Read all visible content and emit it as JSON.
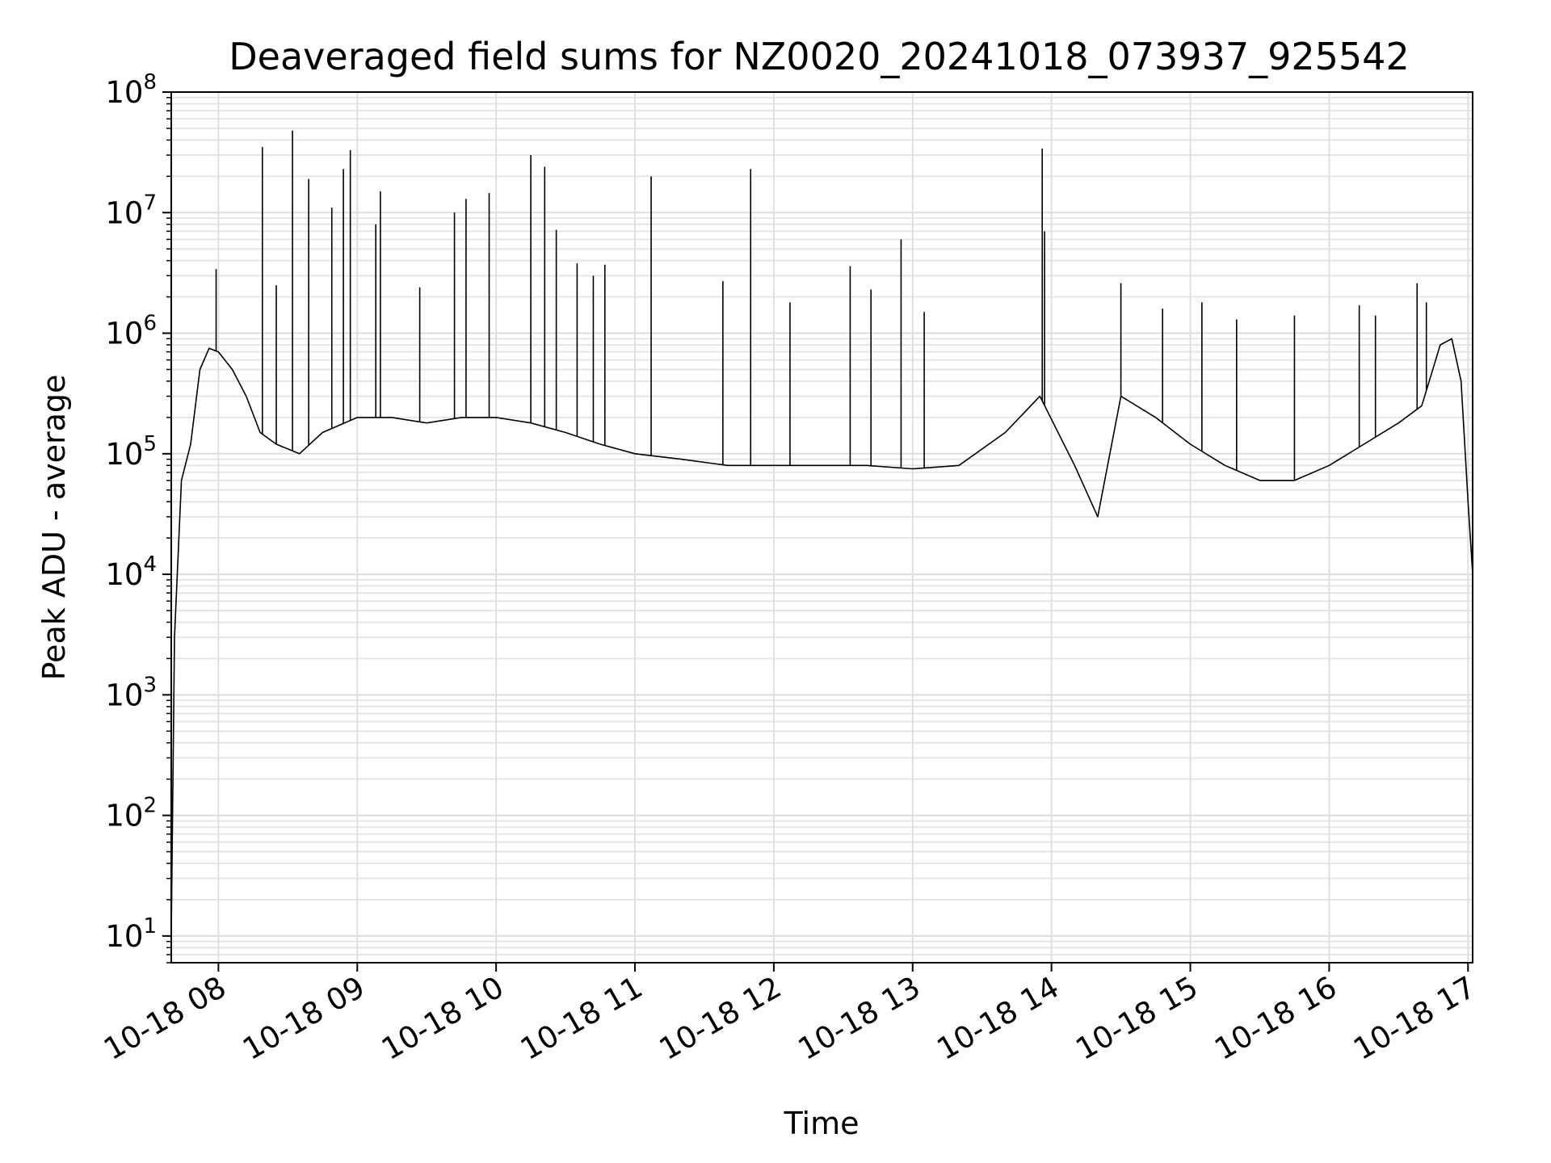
{
  "chart_data": {
    "type": "line",
    "title": "Deaveraged field sums for NZ0020_20241018_073937_925542",
    "xlabel": "Time",
    "ylabel": "Peak ADU - average",
    "yscale": "log",
    "ylim": [
      6,
      100000000
    ],
    "xlim": [
      "2024-10-18T07:39:37",
      "2024-10-18T17:02:00"
    ],
    "grid": true,
    "series_color": "#000000",
    "x_ticks": [
      "10-18 08",
      "10-18 09",
      "10-18 10",
      "10-18 11",
      "10-18 12",
      "10-18 13",
      "10-18 14",
      "10-18 15",
      "10-18 16",
      "10-18 17"
    ],
    "y_ticks": [
      {
        "base": "10",
        "exp": "1"
      },
      {
        "base": "10",
        "exp": "2"
      },
      {
        "base": "10",
        "exp": "3"
      },
      {
        "base": "10",
        "exp": "4"
      },
      {
        "base": "10",
        "exp": "5"
      },
      {
        "base": "10",
        "exp": "6"
      },
      {
        "base": "10",
        "exp": "7"
      },
      {
        "base": "10",
        "exp": "8"
      }
    ],
    "series": [
      {
        "x": [
          "2024-10-18T07:39:37",
          "2024-10-18T07:41",
          "2024-10-18T07:44",
          "2024-10-18T07:48",
          "2024-10-18T07:52",
          "2024-10-18T07:56",
          "2024-10-18T08:00",
          "2024-10-18T08:06",
          "2024-10-18T08:12",
          "2024-10-18T08:18",
          "2024-10-18T08:25",
          "2024-10-18T08:35",
          "2024-10-18T08:45",
          "2024-10-18T09:00",
          "2024-10-18T09:15",
          "2024-10-18T09:30",
          "2024-10-18T09:45",
          "2024-10-18T10:00",
          "2024-10-18T10:15",
          "2024-10-18T10:30",
          "2024-10-18T10:45",
          "2024-10-18T11:00",
          "2024-10-18T11:20",
          "2024-10-18T11:40",
          "2024-10-18T12:00",
          "2024-10-18T12:20",
          "2024-10-18T12:40",
          "2024-10-18T13:00",
          "2024-10-18T13:20",
          "2024-10-18T13:40",
          "2024-10-18T13:55",
          "2024-10-18T14:10",
          "2024-10-18T14:20",
          "2024-10-18T14:30",
          "2024-10-18T14:45",
          "2024-10-18T15:00",
          "2024-10-18T15:15",
          "2024-10-18T15:30",
          "2024-10-18T15:45",
          "2024-10-18T16:00",
          "2024-10-18T16:15",
          "2024-10-18T16:30",
          "2024-10-18T16:40",
          "2024-10-18T16:48",
          "2024-10-18T16:53",
          "2024-10-18T16:57",
          "2024-10-18T17:00",
          "2024-10-18T17:02"
        ],
        "y": [
          10,
          3000,
          60000,
          120000,
          500000,
          750000,
          700000,
          500000,
          300000,
          150000,
          120000,
          100000,
          150000,
          200000,
          200000,
          180000,
          200000,
          200000,
          180000,
          150000,
          120000,
          100000,
          90000,
          80000,
          80000,
          80000,
          80000,
          75000,
          80000,
          150000,
          300000,
          80000,
          30000,
          300000,
          200000,
          120000,
          80000,
          60000,
          60000,
          80000,
          120000,
          180000,
          250000,
          800000,
          900000,
          400000,
          40000,
          10000
        ]
      }
    ],
    "spikes": [
      {
        "x": "2024-10-18T07:59",
        "y": 3400000
      },
      {
        "x": "2024-10-18T08:19",
        "y": 35000000
      },
      {
        "x": "2024-10-18T08:25",
        "y": 2500000
      },
      {
        "x": "2024-10-18T08:32",
        "y": 48000000
      },
      {
        "x": "2024-10-18T08:39",
        "y": 19000000
      },
      {
        "x": "2024-10-18T08:49",
        "y": 11000000
      },
      {
        "x": "2024-10-18T08:54",
        "y": 23000000
      },
      {
        "x": "2024-10-18T08:57",
        "y": 33000000
      },
      {
        "x": "2024-10-18T09:08",
        "y": 8000000
      },
      {
        "x": "2024-10-18T09:10",
        "y": 15000000
      },
      {
        "x": "2024-10-18T09:27",
        "y": 2400000
      },
      {
        "x": "2024-10-18T09:42",
        "y": 10000000
      },
      {
        "x": "2024-10-18T09:47",
        "y": 13000000
      },
      {
        "x": "2024-10-18T09:57",
        "y": 14500000
      },
      {
        "x": "2024-10-18T10:15",
        "y": 30000000
      },
      {
        "x": "2024-10-18T10:21",
        "y": 24000000
      },
      {
        "x": "2024-10-18T10:26",
        "y": 7200000
      },
      {
        "x": "2024-10-18T10:35",
        "y": 3800000
      },
      {
        "x": "2024-10-18T10:42",
        "y": 3000000
      },
      {
        "x": "2024-10-18T10:47",
        "y": 3700000
      },
      {
        "x": "2024-10-18T11:07",
        "y": 20000000
      },
      {
        "x": "2024-10-18T11:38",
        "y": 2700000
      },
      {
        "x": "2024-10-18T11:50",
        "y": 23000000
      },
      {
        "x": "2024-10-18T12:07",
        "y": 1800000
      },
      {
        "x": "2024-10-18T12:33",
        "y": 3600000
      },
      {
        "x": "2024-10-18T12:42",
        "y": 2300000
      },
      {
        "x": "2024-10-18T12:55",
        "y": 6000000
      },
      {
        "x": "2024-10-18T13:05",
        "y": 1500000
      },
      {
        "x": "2024-10-18T13:56",
        "y": 34000000
      },
      {
        "x": "2024-10-18T13:57",
        "y": 7000000
      },
      {
        "x": "2024-10-18T14:30",
        "y": 2600000
      },
      {
        "x": "2024-10-18T14:48",
        "y": 1600000
      },
      {
        "x": "2024-10-18T15:05",
        "y": 1800000
      },
      {
        "x": "2024-10-18T15:20",
        "y": 1300000
      },
      {
        "x": "2024-10-18T15:45",
        "y": 1400000
      },
      {
        "x": "2024-10-18T16:13",
        "y": 1700000
      },
      {
        "x": "2024-10-18T16:20",
        "y": 1400000
      },
      {
        "x": "2024-10-18T16:38",
        "y": 2600000
      },
      {
        "x": "2024-10-18T16:42",
        "y": 1800000
      }
    ]
  }
}
